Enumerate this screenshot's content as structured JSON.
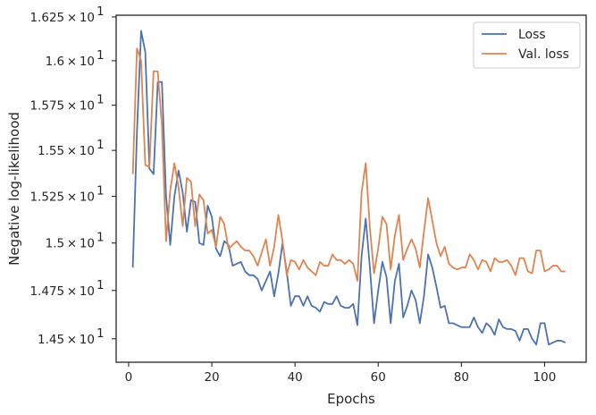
{
  "chart_data": {
    "type": "line",
    "xlabel": "Epochs",
    "ylabel": "Negative log-likelihood",
    "xlim": [
      -3,
      110
    ],
    "ylim": [
      14.38,
      16.26
    ],
    "log_scale_y": true,
    "grid": false,
    "legend_position": "top-right",
    "x_ticks": [
      0,
      20,
      40,
      60,
      80,
      100
    ],
    "x_tick_labels": [
      "0",
      "20",
      "40",
      "60",
      "80",
      "100"
    ],
    "y_ticks": [
      14.5,
      14.75,
      15.0,
      15.25,
      15.5,
      15.75,
      16.0,
      16.25
    ],
    "y_tick_labels": [
      {
        "mant": "1.45",
        "exp": "1"
      },
      {
        "mant": "1.475",
        "exp": "1"
      },
      {
        "mant": "1.5",
        "exp": "1"
      },
      {
        "mant": "1.525",
        "exp": "1"
      },
      {
        "mant": "1.55",
        "exp": "1"
      },
      {
        "mant": "1.575",
        "exp": "1"
      },
      {
        "mant": "1.6",
        "exp": "1"
      },
      {
        "mant": "1.625",
        "exp": "1"
      }
    ],
    "x": [
      1,
      2,
      3,
      4,
      5,
      6,
      7,
      8,
      9,
      10,
      11,
      12,
      13,
      14,
      15,
      16,
      17,
      18,
      19,
      20,
      21,
      22,
      23,
      24,
      25,
      26,
      27,
      28,
      29,
      30,
      31,
      32,
      33,
      34,
      35,
      36,
      37,
      38,
      39,
      40,
      41,
      42,
      43,
      44,
      45,
      46,
      47,
      48,
      49,
      50,
      51,
      52,
      53,
      54,
      55,
      56,
      57,
      58,
      59,
      60,
      61,
      62,
      63,
      64,
      65,
      66,
      67,
      68,
      69,
      70,
      71,
      72,
      73,
      74,
      75,
      76,
      77,
      78,
      79,
      80,
      81,
      82,
      83,
      84,
      85,
      86,
      87,
      88,
      89,
      90,
      91,
      92,
      93,
      94,
      95,
      96,
      97,
      98,
      99,
      100,
      101,
      102,
      103,
      104,
      105
    ],
    "series": [
      {
        "name": "Loss",
        "color": "#4c72b0",
        "values": [
          14.87,
          15.6,
          16.17,
          16.05,
          15.4,
          15.37,
          15.88,
          15.88,
          15.25,
          14.99,
          15.25,
          15.39,
          15.27,
          15.06,
          15.23,
          15.22,
          15.0,
          14.99,
          15.2,
          15.14,
          14.97,
          14.93,
          15.01,
          14.99,
          14.88,
          14.89,
          14.9,
          14.85,
          14.83,
          14.83,
          14.81,
          14.75,
          14.8,
          14.85,
          14.72,
          14.84,
          15.0,
          14.85,
          14.67,
          14.72,
          14.72,
          14.67,
          14.72,
          14.67,
          14.66,
          14.64,
          14.69,
          14.68,
          14.68,
          14.72,
          14.67,
          14.66,
          14.66,
          14.68,
          14.57,
          14.93,
          15.13,
          14.87,
          14.58,
          14.75,
          14.9,
          14.82,
          14.58,
          14.8,
          14.89,
          14.61,
          14.67,
          14.75,
          14.7,
          14.58,
          14.72,
          14.94,
          14.87,
          14.77,
          14.66,
          14.67,
          14.58,
          14.58,
          14.57,
          14.56,
          14.56,
          14.56,
          14.61,
          14.56,
          14.53,
          14.58,
          14.56,
          14.52,
          14.6,
          14.56,
          14.55,
          14.55,
          14.54,
          14.49,
          14.55,
          14.55,
          14.5,
          14.47,
          14.58,
          14.58,
          14.47,
          14.48,
          14.49,
          14.49,
          14.48
        ]
      },
      {
        "name": "Val. loss",
        "color": "#dd8452",
        "values": [
          15.37,
          16.07,
          16.0,
          15.42,
          15.41,
          15.94,
          15.94,
          15.64,
          15.01,
          15.28,
          15.43,
          15.3,
          15.09,
          15.35,
          15.33,
          15.09,
          15.26,
          15.23,
          15.05,
          15.07,
          14.98,
          15.14,
          15.1,
          14.97,
          14.99,
          15.01,
          14.98,
          14.96,
          14.96,
          14.93,
          14.88,
          14.95,
          15.02,
          14.88,
          14.98,
          15.15,
          15.01,
          14.83,
          14.91,
          14.9,
          14.86,
          14.91,
          14.87,
          14.85,
          14.83,
          14.9,
          14.88,
          14.88,
          14.94,
          14.91,
          14.91,
          14.89,
          14.91,
          14.89,
          14.8,
          15.27,
          15.43,
          15.08,
          14.84,
          14.97,
          15.14,
          15.1,
          14.86,
          15.04,
          15.15,
          14.91,
          14.97,
          15.02,
          14.97,
          14.87,
          15.06,
          15.24,
          15.12,
          15.0,
          14.93,
          14.98,
          14.89,
          14.87,
          14.86,
          14.87,
          14.87,
          14.94,
          14.91,
          14.86,
          14.91,
          14.9,
          14.85,
          14.92,
          14.9,
          14.9,
          14.91,
          14.88,
          14.83,
          14.92,
          14.92,
          14.85,
          14.84,
          14.96,
          14.96,
          14.85,
          14.86,
          14.88,
          14.88,
          14.85,
          14.85
        ]
      }
    ]
  }
}
